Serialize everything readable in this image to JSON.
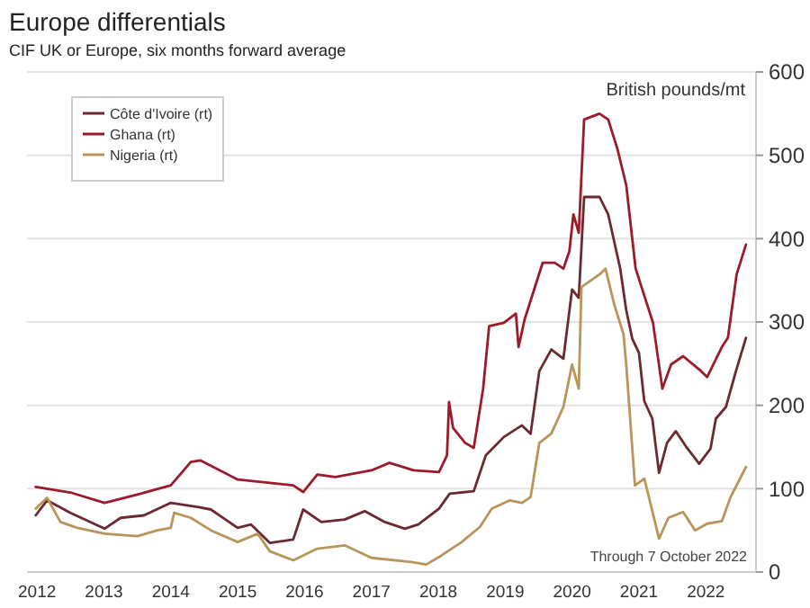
{
  "chart_data": {
    "type": "line",
    "title": "Europe differentials",
    "subtitle": "CIF UK or Europe, six months forward average",
    "ylabel": "British pounds/mt",
    "annotations": [
      "Through 7 October 2022"
    ],
    "xlim": [
      2011.85,
      2022.75
    ],
    "xticks": [
      2012,
      2013,
      2014,
      2015,
      2016,
      2017,
      2018,
      2019,
      2020,
      2021,
      2022
    ],
    "ylim": [
      0,
      600
    ],
    "yticks": [
      0,
      100,
      200,
      300,
      400,
      500,
      600
    ],
    "grid": "y",
    "legend": "top left",
    "line_style": "solid",
    "marker": "none",
    "series": [
      {
        "name": "Côte d'Ivoire (rt)",
        "color": "#6b2a32",
        "x": [
          2011.98,
          2012.15,
          2012.5,
          2013.01,
          2013.25,
          2013.6,
          2014.0,
          2014.4,
          2014.6,
          2015.0,
          2015.2,
          2015.48,
          2015.83,
          2015.98,
          2016.25,
          2016.6,
          2016.9,
          2017.2,
          2017.5,
          2017.7,
          2018.01,
          2018.17,
          2018.53,
          2018.71,
          2018.98,
          2019.25,
          2019.38,
          2019.51,
          2019.69,
          2019.87,
          2020.0,
          2020.1,
          2020.18,
          2020.41,
          2020.54,
          2020.72,
          2020.81,
          2020.9,
          2021.0,
          2021.08,
          2021.2,
          2021.3,
          2021.42,
          2021.55,
          2021.7,
          2021.9,
          2022.07,
          2022.15,
          2022.3,
          2022.45,
          2022.6
        ],
        "values": [
          68,
          86,
          71,
          52,
          65,
          68,
          83,
          78,
          75,
          53,
          57,
          35,
          39,
          75,
          60,
          63,
          73,
          60,
          52,
          57,
          76,
          94,
          97,
          140,
          162,
          176,
          166,
          241,
          267,
          256,
          339,
          329,
          450,
          450,
          429,
          364,
          314,
          280,
          263,
          205,
          184,
          119,
          155,
          169,
          151,
          130,
          148,
          184,
          198,
          241,
          281
        ]
      },
      {
        "name": "Ghana (rt)",
        "color": "#9b1b2a",
        "x": [
          2011.98,
          2012.52,
          2013.01,
          2013.5,
          2014.0,
          2014.3,
          2014.44,
          2015.0,
          2015.48,
          2015.83,
          2015.98,
          2016.19,
          2016.46,
          2017.0,
          2017.27,
          2017.63,
          2018.01,
          2018.13,
          2018.16,
          2018.22,
          2018.4,
          2018.53,
          2018.67,
          2018.76,
          2018.98,
          2019.16,
          2019.2,
          2019.29,
          2019.56,
          2019.74,
          2019.87,
          2019.96,
          2020.02,
          2020.1,
          2020.18,
          2020.41,
          2020.54,
          2020.68,
          2020.81,
          2020.95,
          2021.21,
          2021.35,
          2021.48,
          2021.66,
          2021.93,
          2022.02,
          2022.24,
          2022.33,
          2022.46,
          2022.6
        ],
        "values": [
          102,
          95,
          83,
          93,
          104,
          132,
          134,
          111,
          107,
          104,
          96,
          117,
          114,
          122,
          131,
          122,
          120,
          140,
          204,
          173,
          155,
          149,
          220,
          295,
          299,
          310,
          270,
          303,
          371,
          371,
          364,
          385,
          429,
          407,
          543,
          550,
          543,
          507,
          464,
          364,
          299,
          220,
          249,
          259,
          241,
          234,
          270,
          281,
          357,
          393
        ]
      },
      {
        "name": "Nigeria (rt)",
        "color": "#b8955a",
        "x": [
          2011.98,
          2012.15,
          2012.35,
          2012.6,
          2013.01,
          2013.5,
          2013.8,
          2014.0,
          2014.05,
          2014.3,
          2014.6,
          2015.0,
          2015.3,
          2015.48,
          2015.83,
          2016.19,
          2016.6,
          2017.0,
          2017.6,
          2017.82,
          2018.01,
          2018.35,
          2018.62,
          2018.8,
          2019.07,
          2019.25,
          2019.38,
          2019.51,
          2019.69,
          2019.87,
          2020.0,
          2020.1,
          2020.14,
          2020.41,
          2020.5,
          2020.63,
          2020.77,
          2020.81,
          2020.94,
          2021.08,
          2021.17,
          2021.3,
          2021.44,
          2021.66,
          2021.84,
          2022.02,
          2022.24,
          2022.37,
          2022.6
        ],
        "values": [
          76,
          89,
          60,
          53,
          46,
          43,
          50,
          53,
          71,
          65,
          50,
          36,
          46,
          25,
          14,
          28,
          32,
          17,
          12,
          9,
          18,
          36,
          54,
          76,
          86,
          83,
          90,
          155,
          166,
          198,
          249,
          220,
          342,
          357,
          364,
          321,
          285,
          249,
          104,
          112,
          83,
          40,
          65,
          72,
          50,
          58,
          61,
          90,
          126
        ]
      }
    ]
  }
}
